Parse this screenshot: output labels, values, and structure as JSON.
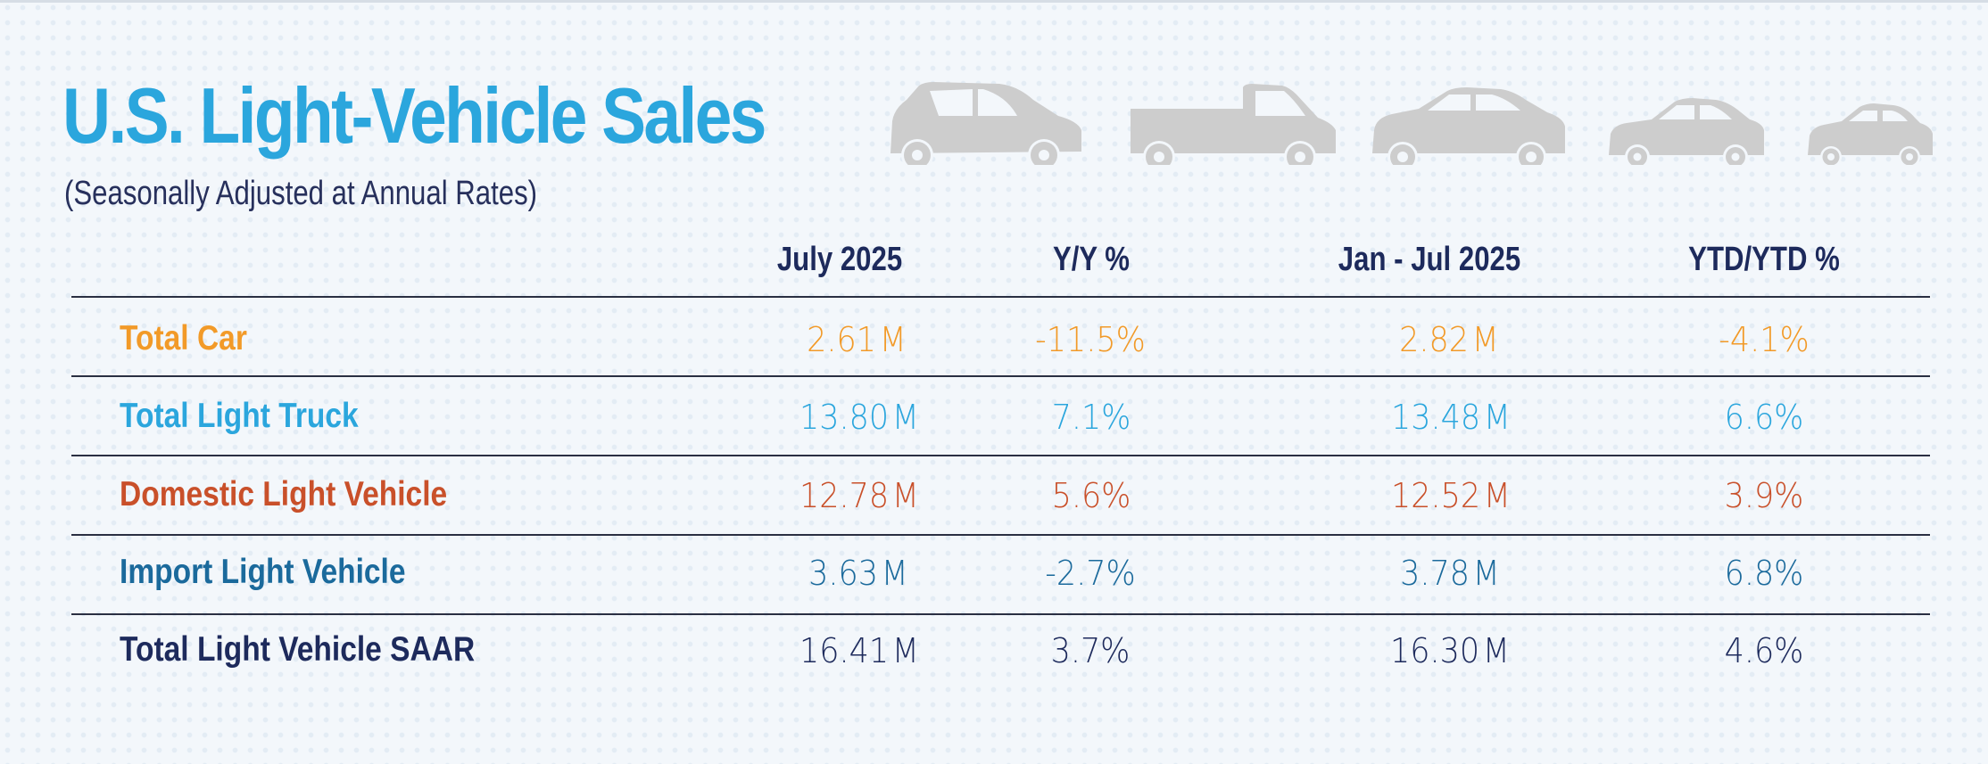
{
  "title": "U.S. Light-Vehicle Sales",
  "subtitle": "(Seasonally Adjusted at Annual Rates)",
  "icons": [
    "suv-icon",
    "pickup-truck-icon",
    "sedan-icon",
    "compact-sedan-icon",
    "small-car-icon"
  ],
  "colors": {
    "title": "#2ba6dd",
    "car": "#f29a28",
    "light_truck": "#2ba6dd",
    "domestic": "#c9502a",
    "import": "#1b6a9c",
    "total": "#1d2a5c",
    "vehicle_icons": "#cdcdcd"
  },
  "chart_data": {
    "type": "table",
    "title": "U.S. Light-Vehicle Sales",
    "subtitle": "(Seasonally Adjusted at Annual Rates)",
    "columns": [
      "July 2025",
      "Y/Y %",
      "Jan - Jul 2025",
      "YTD/YTD %"
    ],
    "rows": [
      {
        "label": "Total Car",
        "july_2025": "2.61",
        "july_unit": "M",
        "yy": "-11.5%",
        "jan_jul": "2.82",
        "jan_jul_unit": "M",
        "ytd": "-4.1%"
      },
      {
        "label": "Total Light Truck",
        "july_2025": "13.80",
        "july_unit": "M",
        "yy": "7.1%",
        "jan_jul": "13.48",
        "jan_jul_unit": "M",
        "ytd": "6.6%"
      },
      {
        "label": "Domestic Light Vehicle",
        "july_2025": "12.78",
        "july_unit": "M",
        "yy": "5.6%",
        "jan_jul": "12.52",
        "jan_jul_unit": "M",
        "ytd": "3.9%"
      },
      {
        "label": "Import Light Vehicle",
        "july_2025": "3.63",
        "july_unit": "M",
        "yy": "-2.7%",
        "jan_jul": "3.78",
        "jan_jul_unit": "M",
        "ytd": "6.8%"
      },
      {
        "label": "Total Light Vehicle SAAR",
        "july_2025": "16.41",
        "july_unit": "M",
        "yy": "3.7%",
        "jan_jul": "16.30",
        "jan_jul_unit": "M",
        "ytd": "4.6%"
      }
    ]
  }
}
